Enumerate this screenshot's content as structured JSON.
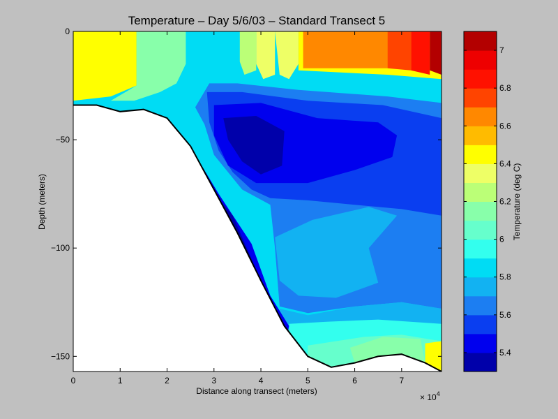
{
  "chart_data": {
    "type": "heatmap",
    "title": "Temperature – Day 5/6/03 – Standard Transect 5",
    "xlabel": "Distance along transect (meters)",
    "ylabel": "Depth (meters)",
    "x_multiplier_label": "× 10",
    "x_multiplier_exponent": "4",
    "xlim": [
      0,
      7.85
    ],
    "ylim": [
      -157,
      0
    ],
    "x_ticks": [
      0,
      1,
      2,
      3,
      4,
      5,
      6,
      7
    ],
    "x_tick_labels": [
      "0",
      "1",
      "2",
      "3",
      "4",
      "5",
      "6",
      "7"
    ],
    "y_ticks": [
      0,
      -50,
      -100,
      -150
    ],
    "y_tick_labels": [
      "0",
      "−50",
      "−100",
      "−150"
    ],
    "colorbar": {
      "label": "Temperature (deg C)",
      "range": [
        5.3,
        7.1
      ],
      "ticks": [
        5.4,
        5.6,
        5.8,
        6,
        6.2,
        6.4,
        6.6,
        6.8,
        7
      ],
      "tick_labels": [
        "5.4",
        "5.6",
        "5.8",
        "6",
        "6.2",
        "6.4",
        "6.6",
        "6.8",
        "7"
      ],
      "bands": [
        {
          "from": 5.3,
          "to": 5.4,
          "color": "#0000aa"
        },
        {
          "from": 5.4,
          "to": 5.5,
          "color": "#0000ee"
        },
        {
          "from": 5.5,
          "to": 5.6,
          "color": "#0a3ef0"
        },
        {
          "from": 5.6,
          "to": 5.7,
          "color": "#1c7ef2"
        },
        {
          "from": 5.7,
          "to": 5.8,
          "color": "#12b2f2"
        },
        {
          "from": 5.8,
          "to": 5.9,
          "color": "#00dcf4"
        },
        {
          "from": 5.9,
          "to": 6.0,
          "color": "#33ffee"
        },
        {
          "from": 6.0,
          "to": 6.1,
          "color": "#66ffcc"
        },
        {
          "from": 6.1,
          "to": 6.2,
          "color": "#88ffaa"
        },
        {
          "from": 6.2,
          "to": 6.3,
          "color": "#bbff77"
        },
        {
          "from": 6.3,
          "to": 6.4,
          "color": "#eeff66"
        },
        {
          "from": 6.4,
          "to": 6.5,
          "color": "#ffff00"
        },
        {
          "from": 6.5,
          "to": 6.6,
          "color": "#ffbb00"
        },
        {
          "from": 6.6,
          "to": 6.7,
          "color": "#ff8800"
        },
        {
          "from": 6.7,
          "to": 6.8,
          "color": "#ff4400"
        },
        {
          "from": 6.8,
          "to": 6.9,
          "color": "#ff1100"
        },
        {
          "from": 6.9,
          "to": 7.0,
          "color": "#ee0000"
        },
        {
          "from": 7.0,
          "to": 7.1,
          "color": "#b30000"
        }
      ]
    },
    "bottom_profile": [
      [
        0,
        -34
      ],
      [
        0.5,
        -34
      ],
      [
        1,
        -37
      ],
      [
        1.5,
        -36
      ],
      [
        2,
        -40
      ],
      [
        2.5,
        -53
      ],
      [
        3,
        -73
      ],
      [
        3.5,
        -93
      ],
      [
        4,
        -115
      ],
      [
        4.5,
        -136
      ],
      [
        5,
        -150
      ],
      [
        5.5,
        -155
      ],
      [
        6,
        -153
      ],
      [
        6.5,
        -150
      ],
      [
        7,
        -149
      ],
      [
        7.5,
        -153
      ],
      [
        7.85,
        -157
      ]
    ],
    "temperature_regions": [
      {
        "value": 5.85,
        "points": [
          [
            0,
            0
          ],
          [
            7.85,
            0
          ],
          [
            7.85,
            -157
          ],
          [
            0,
            -157
          ]
        ]
      },
      {
        "value": 6.45,
        "points": [
          [
            0,
            0
          ],
          [
            1.35,
            0
          ],
          [
            1.35,
            -25
          ],
          [
            0.8,
            -30
          ],
          [
            0,
            -32
          ]
        ]
      },
      {
        "value": 6.15,
        "points": [
          [
            1.35,
            0
          ],
          [
            2.4,
            0
          ],
          [
            2.4,
            -15
          ],
          [
            2.2,
            -24
          ],
          [
            1.85,
            -28
          ],
          [
            1.3,
            -32
          ],
          [
            0.8,
            -32
          ],
          [
            1.35,
            -25
          ]
        ]
      },
      {
        "value": 6.35,
        "points": [
          [
            4.3,
            0
          ],
          [
            4.8,
            0
          ],
          [
            4.8,
            -15
          ],
          [
            4.6,
            -22
          ],
          [
            4.4,
            -20
          ]
        ]
      },
      {
        "value": 6.35,
        "points": [
          [
            3.9,
            0
          ],
          [
            4.3,
            0
          ],
          [
            4.3,
            -20
          ],
          [
            4.05,
            -22
          ],
          [
            3.9,
            -15
          ]
        ]
      },
      {
        "value": 6.25,
        "points": [
          [
            3.55,
            0
          ],
          [
            3.9,
            0
          ],
          [
            3.9,
            -18
          ],
          [
            3.65,
            -20
          ],
          [
            3.55,
            -14
          ]
        ]
      },
      {
        "value": 6.45,
        "points": [
          [
            4.8,
            0
          ],
          [
            7.85,
            0
          ],
          [
            7.85,
            -22
          ],
          [
            6.7,
            -20
          ],
          [
            4.8,
            -18
          ]
        ]
      },
      {
        "value": 6.65,
        "points": [
          [
            4.9,
            0
          ],
          [
            6.7,
            0
          ],
          [
            6.7,
            -17
          ],
          [
            4.9,
            -17
          ]
        ]
      },
      {
        "value": 6.75,
        "points": [
          [
            6.7,
            0
          ],
          [
            7.2,
            0
          ],
          [
            7.2,
            -18
          ],
          [
            6.7,
            -17
          ]
        ]
      },
      {
        "value": 6.85,
        "points": [
          [
            7.2,
            0
          ],
          [
            7.6,
            0
          ],
          [
            7.6,
            -20
          ],
          [
            7.2,
            -18
          ]
        ]
      },
      {
        "value": 7.05,
        "points": [
          [
            7.6,
            0
          ],
          [
            7.85,
            0
          ],
          [
            7.85,
            -20
          ],
          [
            7.6,
            -18
          ]
        ]
      },
      {
        "value": 5.65,
        "points": [
          [
            2.9,
            -24
          ],
          [
            3.5,
            -24
          ],
          [
            4.8,
            -27
          ],
          [
            6.7,
            -30
          ],
          [
            7.85,
            -33
          ],
          [
            7.85,
            -128
          ],
          [
            7,
            -125
          ],
          [
            6,
            -127
          ],
          [
            5,
            -130
          ],
          [
            4.4,
            -127
          ],
          [
            4.3,
            -100
          ],
          [
            4.2,
            -80
          ],
          [
            3.6,
            -73
          ],
          [
            3.3,
            -65
          ],
          [
            3,
            -57
          ],
          [
            2.8,
            -43
          ],
          [
            2.6,
            -35
          ]
        ]
      },
      {
        "value": 5.55,
        "points": [
          [
            2.85,
            -28
          ],
          [
            3.6,
            -28
          ],
          [
            5,
            -32
          ],
          [
            6.6,
            -34
          ],
          [
            7.85,
            -40
          ],
          [
            7.85,
            -85
          ],
          [
            7,
            -82
          ],
          [
            6,
            -80
          ],
          [
            5,
            -78
          ],
          [
            4.2,
            -77
          ],
          [
            3.8,
            -73
          ],
          [
            3.4,
            -65
          ],
          [
            3.1,
            -55
          ],
          [
            2.9,
            -42
          ]
        ]
      },
      {
        "value": 5.45,
        "points": [
          [
            3.0,
            -34
          ],
          [
            4.0,
            -33
          ],
          [
            5.2,
            -40
          ],
          [
            6.5,
            -42
          ],
          [
            6.9,
            -48
          ],
          [
            6.8,
            -58
          ],
          [
            6.0,
            -64
          ],
          [
            5.0,
            -70
          ],
          [
            3.9,
            -70
          ],
          [
            3.3,
            -62
          ],
          [
            3.0,
            -48
          ]
        ]
      },
      {
        "value": 5.35,
        "points": [
          [
            3.2,
            -40
          ],
          [
            3.9,
            -39
          ],
          [
            4.5,
            -46
          ],
          [
            4.45,
            -62
          ],
          [
            4.0,
            -66
          ],
          [
            3.6,
            -60
          ],
          [
            3.3,
            -50
          ]
        ]
      },
      {
        "value": 5.75,
        "points": [
          [
            4.3,
            -95
          ],
          [
            5.1,
            -87
          ],
          [
            6.3,
            -81
          ],
          [
            6.9,
            -85
          ],
          [
            6.3,
            -100
          ],
          [
            6.5,
            -116
          ],
          [
            5.6,
            -123
          ],
          [
            4.8,
            -122
          ],
          [
            4.4,
            -115
          ]
        ]
      },
      {
        "value": 5.75,
        "points": [
          [
            4.4,
            -128
          ],
          [
            5,
            -131
          ],
          [
            6,
            -127
          ],
          [
            7,
            -125
          ],
          [
            7.85,
            -128
          ],
          [
            7.85,
            -157
          ],
          [
            4.4,
            -157
          ]
        ]
      },
      {
        "value": 5.95,
        "points": [
          [
            4.6,
            -135
          ],
          [
            5.4,
            -134
          ],
          [
            6.5,
            -133
          ],
          [
            7.85,
            -135
          ],
          [
            7.85,
            -157
          ],
          [
            4.6,
            -157
          ]
        ]
      },
      {
        "value": 6.05,
        "points": [
          [
            5,
            -145
          ],
          [
            6.2,
            -141
          ],
          [
            7.0,
            -140
          ],
          [
            7.85,
            -143
          ],
          [
            7.85,
            -157
          ],
          [
            5,
            -157
          ]
        ]
      },
      {
        "value": 6.15,
        "points": [
          [
            5.9,
            -146
          ],
          [
            6.6,
            -141
          ],
          [
            7.4,
            -142
          ],
          [
            7.5,
            -153
          ],
          [
            6,
            -153
          ]
        ]
      },
      {
        "value": 6.45,
        "points": [
          [
            7.5,
            -144
          ],
          [
            7.85,
            -143
          ],
          [
            7.85,
            -157
          ],
          [
            7.5,
            -157
          ]
        ]
      },
      {
        "value": 5.45,
        "points": [
          [
            2.6,
            -57
          ],
          [
            3.1,
            -75
          ],
          [
            3.8,
            -98
          ],
          [
            4.2,
            -122
          ],
          [
            4.6,
            -136
          ],
          [
            4.5,
            -145
          ],
          [
            4.3,
            -140
          ],
          [
            3.9,
            -120
          ],
          [
            3.5,
            -100
          ],
          [
            3.0,
            -78
          ]
        ]
      },
      {
        "value": 5.35,
        "points": [
          [
            2.9,
            -72
          ],
          [
            3.4,
            -85
          ],
          [
            3.9,
            -110
          ],
          [
            4.2,
            -130
          ],
          [
            4.0,
            -128
          ],
          [
            3.6,
            -110
          ],
          [
            3.2,
            -92
          ]
        ]
      }
    ]
  }
}
